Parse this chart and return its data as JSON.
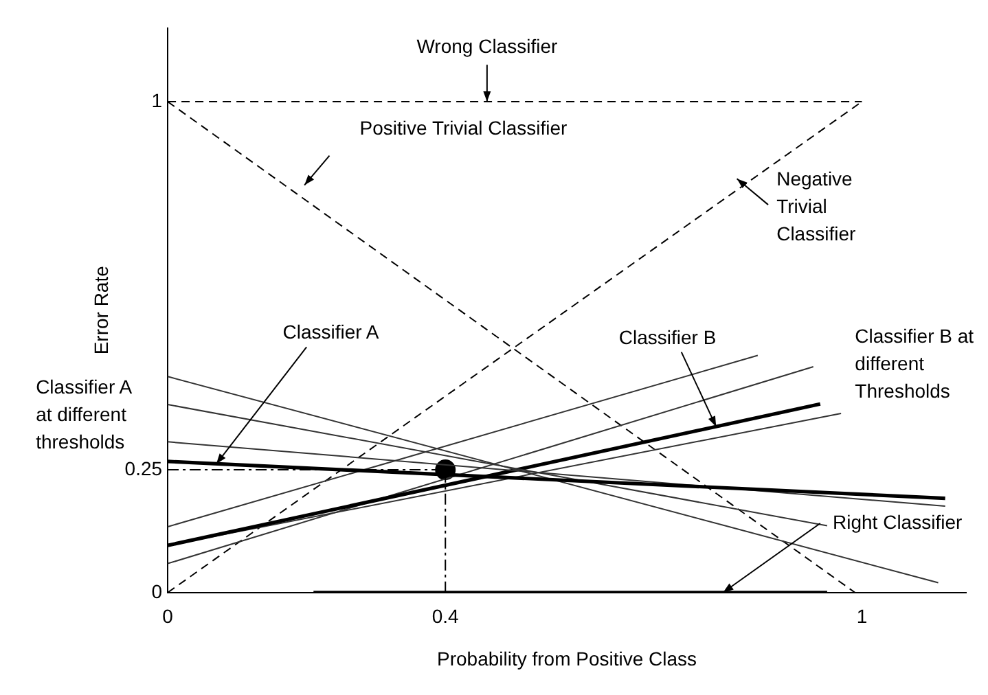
{
  "chart_data": {
    "type": "line",
    "xlabel": "Probability from Positive Class",
    "ylabel": "Error Rate",
    "xlim": [
      0,
      1.15
    ],
    "ylim": [
      0,
      1.15
    ],
    "xticks": [
      0,
      0.4,
      1
    ],
    "yticks": [
      0,
      0.25,
      1
    ],
    "grid": false,
    "legend": false,
    "series": [
      {
        "color": "#000000",
        "x": [
          0,
          1.12
        ],
        "values": [
          0.267,
          0.192
        ]
      },
      {
        "color": "#333333",
        "x": [
          0,
          1.11
        ],
        "values": [
          0.44,
          0.02
        ]
      },
      {
        "color": "#333333",
        "x": [
          0,
          0.95
        ],
        "values": [
          0.383,
          0.136
        ]
      },
      {
        "color": "#333333",
        "x": [
          0,
          1.12
        ],
        "values": [
          0.307,
          0.176
        ]
      },
      {
        "color": "#000000",
        "x": [
          0,
          0.94
        ],
        "values": [
          0.096,
          0.384
        ]
      },
      {
        "color": "#333333",
        "x": [
          0,
          0.85
        ],
        "values": [
          0.134,
          0.483
        ]
      },
      {
        "color": "#333333",
        "x": [
          0,
          0.93
        ],
        "values": [
          0.059,
          0.46
        ]
      },
      {
        "color": "#333333",
        "x": [
          0,
          0.97
        ],
        "values": [
          0.096,
          0.365
        ]
      },
      {
        "color": "#000000",
        "line_style": "dashed",
        "x": [
          0,
          1
        ],
        "values": [
          1,
          1
        ]
      },
      {
        "color": "#000000",
        "line_style": "dashed",
        "x": [
          0,
          0.99
        ],
        "values": [
          1,
          0
        ]
      },
      {
        "color": "#000000",
        "line_style": "dashed",
        "x": [
          0,
          1
        ],
        "values": [
          0,
          1
        ]
      },
      {
        "color": "#000000",
        "x": [
          0.21,
          0.95
        ],
        "values": [
          0,
          0
        ]
      },
      {
        "type": "scatter",
        "color": "#000000",
        "marker": "circle",
        "x": [
          0.4
        ],
        "values": [
          0.25
        ]
      }
    ],
    "ref_lines": [
      {
        "axis": "x",
        "value": 0.4,
        "line_style": "dashed",
        "color": "#000000"
      },
      {
        "axis": "y",
        "value": 0.25,
        "line_style": "dashed",
        "color": "#000000"
      }
    ],
    "annotations": [
      {
        "text": "Wrong Classifier",
        "x": 0.46,
        "y": 1
      },
      "Positive Trivial Classifier",
      "Negative Trivial Classifier",
      {
        "text": "Classifier A",
        "x": 0.07,
        "y": 0.262
      },
      {
        "text": "Classifier B",
        "x": 0.79,
        "y": 0.338
      },
      "Classifier B at different Thresholds",
      {
        "text": "Right Classifier",
        "x": 0.8,
        "y": 0
      },
      "Classifier A at different thresholds"
    ]
  }
}
